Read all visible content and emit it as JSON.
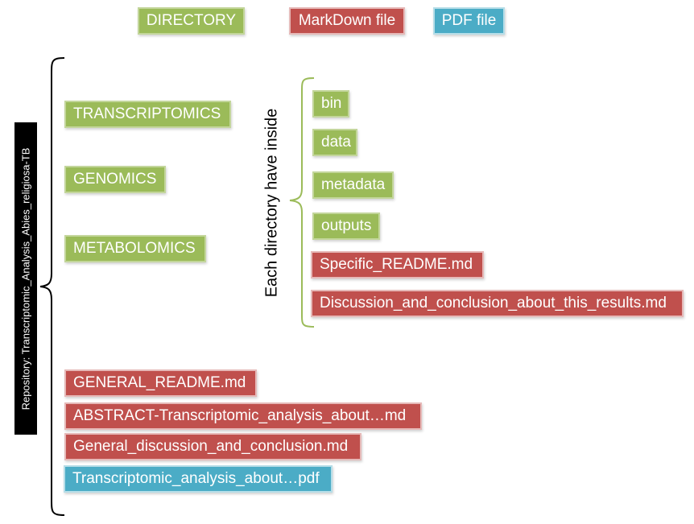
{
  "legend": {
    "directory": "DIRECTORY",
    "markdown": "MarkDown file",
    "pdf": "PDF file"
  },
  "colors": {
    "directory": "#9bbb59",
    "markdown": "#c0504d",
    "pdf": "#4bacc6",
    "bracket_inner": "#9bbb59",
    "bracket_outer": "#000000"
  },
  "repository_label": "Repository: Transcriptomic_Analysis_Abies_religiosa-TB",
  "directories": [
    "TRANSCRIPTOMICS",
    "GENOMICS",
    "METABOLOMICS"
  ],
  "inside_label": "Each directory have inside",
  "inside_items": {
    "bin": "bin",
    "data": "data",
    "metadata": "metadata",
    "outputs": "outputs",
    "specific_readme": "Specific_README.md",
    "discussion": "Discussion_and_conclusion_about_this_results.md"
  },
  "root_files": {
    "general_readme": "GENERAL_README.md",
    "abstract": "ABSTRACT-Transcriptomic_analysis_about…md",
    "general_discussion": "General_discussion_and_conclusion.md",
    "pdf": "Transcriptomic_analysis_about…pdf"
  }
}
